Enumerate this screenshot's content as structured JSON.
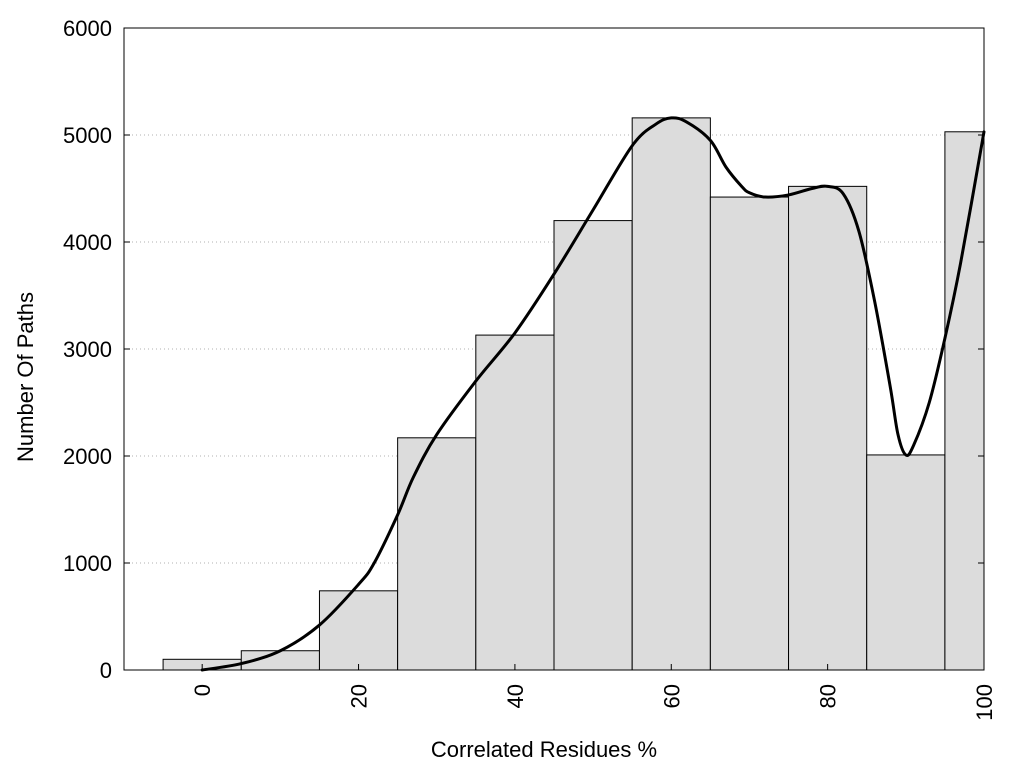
{
  "chart_data": {
    "type": "bar",
    "title": "",
    "xlabel": "Correlated Residues %",
    "ylabel": "Number Of Paths",
    "xlim": [
      -10,
      100
    ],
    "ylim": [
      0,
      6000
    ],
    "grid": "horizontal dotted",
    "legend": "none",
    "x_ticks": [
      0,
      20,
      40,
      60,
      80,
      100
    ],
    "y_ticks": [
      0,
      1000,
      2000,
      3000,
      4000,
      5000,
      6000
    ],
    "bin_width": 10,
    "bins": [
      {
        "center": 0,
        "value": 100
      },
      {
        "center": 10,
        "value": 180
      },
      {
        "center": 20,
        "value": 740
      },
      {
        "center": 30,
        "value": 2170
      },
      {
        "center": 40,
        "value": 3130
      },
      {
        "center": 50,
        "value": 4200
      },
      {
        "center": 60,
        "value": 5160
      },
      {
        "center": 70,
        "value": 4420
      },
      {
        "center": 80,
        "value": 4520
      },
      {
        "center": 90,
        "value": 2010
      },
      {
        "center": 100,
        "value": 5030
      }
    ],
    "smooth_curve": {
      "x": [
        0,
        5,
        10,
        15,
        20,
        22,
        25,
        27,
        30,
        35,
        40,
        45,
        50,
        55,
        58,
        60,
        62,
        65,
        67,
        69,
        70,
        72,
        75,
        78,
        80,
        82,
        84,
        86,
        88,
        89,
        90,
        91,
        93,
        95,
        97,
        100
      ],
      "y": [
        0,
        60,
        180,
        420,
        800,
        1000,
        1450,
        1800,
        2200,
        2700,
        3150,
        3700,
        4300,
        4900,
        5100,
        5160,
        5120,
        4950,
        4700,
        4520,
        4460,
        4420,
        4440,
        4500,
        4520,
        4450,
        4100,
        3450,
        2650,
        2200,
        2010,
        2100,
        2500,
        3100,
        3800,
        5030
      ]
    },
    "colors": {
      "bar_fill": "#dcdcdc",
      "bar_stroke": "#000000",
      "curve": "#000000",
      "grid": "#b0b0b0"
    }
  }
}
